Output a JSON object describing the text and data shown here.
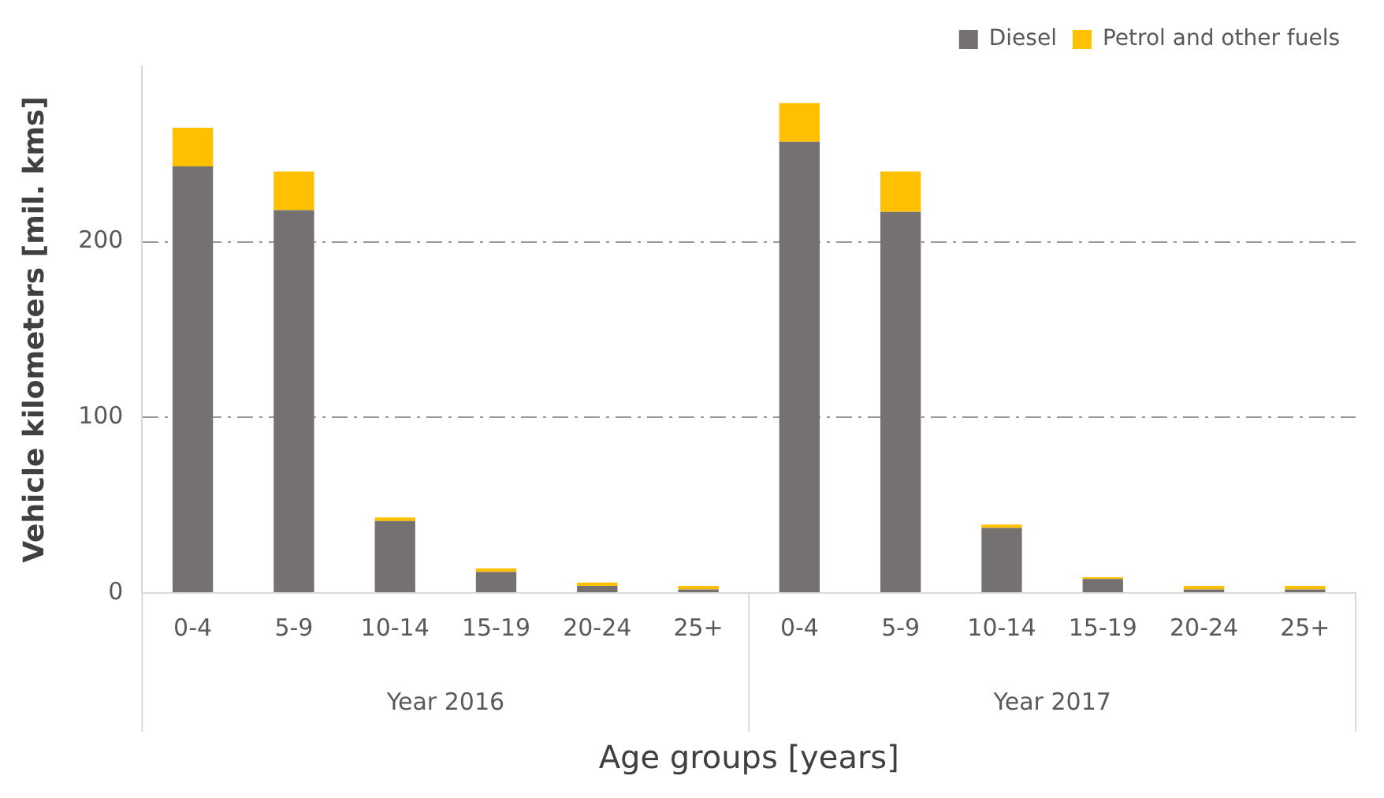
{
  "chart_data": {
    "type": "bar",
    "stacked": true,
    "xlabel": "Age groups [years]",
    "ylabel": "Vehicle kilometers [mil. kms]",
    "categories": [
      "0-4",
      "5-9",
      "10-14",
      "15-19",
      "20-24",
      "25+",
      "0-4",
      "5-9",
      "10-14",
      "15-19",
      "20-24",
      "25+"
    ],
    "annotations": [
      "Year 2016",
      "Year 2017"
    ],
    "series": [
      {
        "name": "Diesel",
        "color": "#767171",
        "values": [
          243,
          218,
          41,
          12,
          4,
          2,
          257,
          217,
          37,
          8,
          2,
          2
        ]
      },
      {
        "name": "Petrol and other fuels",
        "color": "#ffc000",
        "values": [
          22,
          22,
          2,
          2,
          2,
          2,
          22,
          23,
          2,
          1,
          2,
          2
        ]
      }
    ],
    "ylim": [
      0,
      300
    ],
    "yticks": [
      0,
      100,
      200
    ],
    "grid": "y",
    "legend": "top right"
  }
}
